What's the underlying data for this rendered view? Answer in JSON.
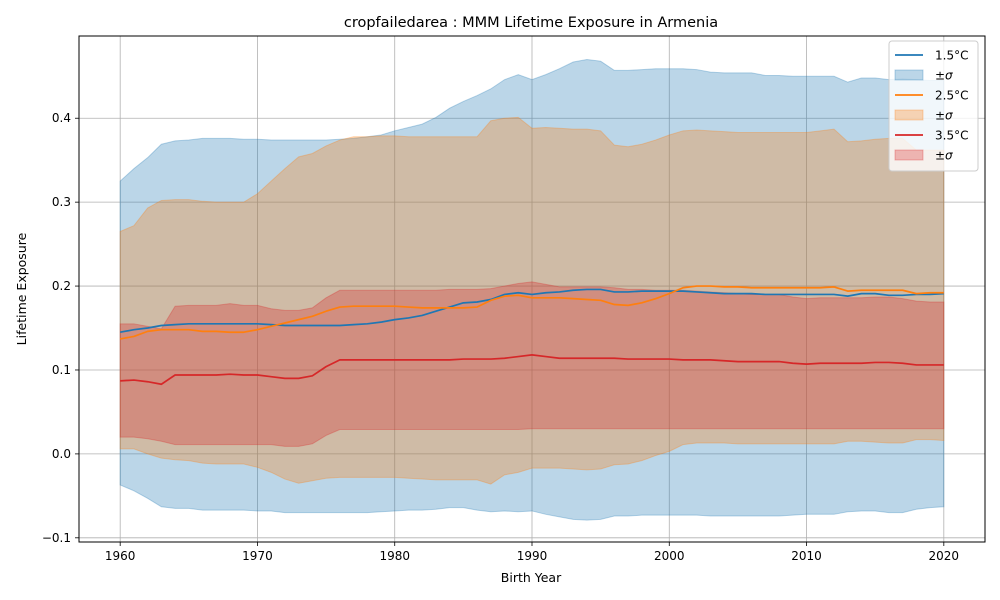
{
  "chart_data": {
    "type": "area",
    "title": "cropfailedarea : MMM Lifetime Exposure in Armenia",
    "xlabel": "Birth Year",
    "ylabel": "Lifetime Exposure",
    "xlim": [
      1957,
      2023
    ],
    "ylim": [
      -0.105,
      0.498
    ],
    "x_ticks": [
      1960,
      1970,
      1980,
      1990,
      2000,
      2010,
      2020
    ],
    "x_tick_labels": [
      "1960",
      "1970",
      "1980",
      "1990",
      "2000",
      "2010",
      "2020"
    ],
    "y_ticks": [
      -0.1,
      0.0,
      0.1,
      0.2,
      0.3,
      0.4
    ],
    "y_tick_labels": [
      "−0.1",
      "0.0",
      "0.1",
      "0.2",
      "0.3",
      "0.4"
    ],
    "grid": true,
    "legend_position": "top-right",
    "x": [
      1960,
      1961,
      1962,
      1963,
      1964,
      1965,
      1966,
      1967,
      1968,
      1969,
      1970,
      1971,
      1972,
      1973,
      1974,
      1975,
      1976,
      1977,
      1978,
      1979,
      1980,
      1981,
      1982,
      1983,
      1984,
      1985,
      1986,
      1987,
      1988,
      1989,
      1990,
      1991,
      1992,
      1993,
      1994,
      1995,
      1996,
      1997,
      1998,
      1999,
      2000,
      2001,
      2002,
      2003,
      2004,
      2005,
      2006,
      2007,
      2008,
      2009,
      2010,
      2011,
      2012,
      2013,
      2014,
      2015,
      2016,
      2017,
      2018,
      2019,
      2020
    ],
    "series": [
      {
        "name": "1.5°C",
        "band_label": "±σ",
        "color": "#1f77b4",
        "mean": [
          0.145,
          0.148,
          0.15,
          0.153,
          0.154,
          0.155,
          0.155,
          0.155,
          0.155,
          0.155,
          0.155,
          0.154,
          0.153,
          0.153,
          0.153,
          0.153,
          0.153,
          0.154,
          0.155,
          0.157,
          0.16,
          0.162,
          0.165,
          0.17,
          0.175,
          0.18,
          0.181,
          0.184,
          0.19,
          0.192,
          0.19,
          0.192,
          0.193,
          0.195,
          0.196,
          0.196,
          0.193,
          0.193,
          0.194,
          0.194,
          0.194,
          0.194,
          0.193,
          0.192,
          0.191,
          0.191,
          0.191,
          0.19,
          0.19,
          0.19,
          0.19,
          0.19,
          0.19,
          0.188,
          0.191,
          0.191,
          0.189,
          0.189,
          0.19,
          0.19,
          0.191
        ],
        "upper": [
          0.325,
          0.34,
          0.353,
          0.369,
          0.373,
          0.374,
          0.376,
          0.376,
          0.376,
          0.375,
          0.375,
          0.374,
          0.374,
          0.374,
          0.374,
          0.374,
          0.375,
          0.376,
          0.378,
          0.38,
          0.385,
          0.389,
          0.393,
          0.401,
          0.412,
          0.42,
          0.427,
          0.435,
          0.446,
          0.452,
          0.446,
          0.452,
          0.459,
          0.467,
          0.47,
          0.468,
          0.457,
          0.457,
          0.458,
          0.459,
          0.459,
          0.459,
          0.458,
          0.455,
          0.454,
          0.454,
          0.454,
          0.451,
          0.451,
          0.45,
          0.45,
          0.45,
          0.45,
          0.443,
          0.448,
          0.448,
          0.446,
          0.447,
          0.446,
          0.445,
          0.445
        ],
        "lower": [
          -0.037,
          -0.044,
          -0.053,
          -0.063,
          -0.065,
          -0.065,
          -0.067,
          -0.067,
          -0.067,
          -0.067,
          -0.068,
          -0.068,
          -0.07,
          -0.07,
          -0.07,
          -0.07,
          -0.07,
          -0.07,
          -0.07,
          -0.069,
          -0.068,
          -0.067,
          -0.067,
          -0.066,
          -0.064,
          -0.064,
          -0.067,
          -0.069,
          -0.068,
          -0.069,
          -0.068,
          -0.072,
          -0.075,
          -0.078,
          -0.079,
          -0.078,
          -0.074,
          -0.074,
          -0.073,
          -0.073,
          -0.073,
          -0.073,
          -0.073,
          -0.074,
          -0.074,
          -0.074,
          -0.074,
          -0.074,
          -0.074,
          -0.073,
          -0.072,
          -0.072,
          -0.072,
          -0.069,
          -0.068,
          -0.068,
          -0.07,
          -0.07,
          -0.066,
          -0.064,
          -0.063
        ]
      },
      {
        "name": "2.5°C",
        "band_label": "±σ",
        "color": "#ff7f0e",
        "mean": [
          0.137,
          0.14,
          0.146,
          0.148,
          0.148,
          0.148,
          0.146,
          0.146,
          0.145,
          0.145,
          0.148,
          0.152,
          0.156,
          0.16,
          0.164,
          0.17,
          0.175,
          0.176,
          0.176,
          0.176,
          0.176,
          0.175,
          0.174,
          0.174,
          0.174,
          0.174,
          0.175,
          0.183,
          0.188,
          0.189,
          0.186,
          0.186,
          0.186,
          0.185,
          0.184,
          0.183,
          0.178,
          0.177,
          0.18,
          0.185,
          0.191,
          0.198,
          0.2,
          0.2,
          0.199,
          0.199,
          0.198,
          0.198,
          0.198,
          0.198,
          0.198,
          0.198,
          0.199,
          0.194,
          0.195,
          0.195,
          0.195,
          0.195,
          0.191,
          0.192,
          0.192
        ],
        "upper": [
          0.265,
          0.272,
          0.293,
          0.302,
          0.303,
          0.303,
          0.301,
          0.3,
          0.3,
          0.3,
          0.31,
          0.325,
          0.34,
          0.354,
          0.358,
          0.367,
          0.374,
          0.378,
          0.378,
          0.379,
          0.379,
          0.378,
          0.378,
          0.378,
          0.378,
          0.378,
          0.378,
          0.397,
          0.4,
          0.401,
          0.388,
          0.389,
          0.388,
          0.387,
          0.387,
          0.385,
          0.368,
          0.366,
          0.369,
          0.374,
          0.38,
          0.385,
          0.386,
          0.385,
          0.384,
          0.383,
          0.383,
          0.383,
          0.383,
          0.383,
          0.383,
          0.385,
          0.387,
          0.372,
          0.373,
          0.375,
          0.376,
          0.376,
          0.362,
          0.362,
          0.362
        ],
        "lower": [
          0.006,
          0.006,
          0.0,
          -0.005,
          -0.007,
          -0.008,
          -0.011,
          -0.012,
          -0.012,
          -0.012,
          -0.016,
          -0.022,
          -0.03,
          -0.035,
          -0.032,
          -0.029,
          -0.028,
          -0.028,
          -0.028,
          -0.028,
          -0.028,
          -0.029,
          -0.03,
          -0.031,
          -0.031,
          -0.031,
          -0.031,
          -0.036,
          -0.025,
          -0.022,
          -0.017,
          -0.017,
          -0.017,
          -0.018,
          -0.019,
          -0.018,
          -0.013,
          -0.012,
          -0.008,
          -0.002,
          0.003,
          0.011,
          0.013,
          0.013,
          0.013,
          0.012,
          0.012,
          0.012,
          0.012,
          0.012,
          0.012,
          0.012,
          0.012,
          0.015,
          0.015,
          0.014,
          0.013,
          0.013,
          0.017,
          0.017,
          0.016
        ]
      },
      {
        "name": "3.5°C",
        "band_label": "±σ",
        "color": "#d62728",
        "mean": [
          0.087,
          0.088,
          0.086,
          0.083,
          0.094,
          0.094,
          0.094,
          0.094,
          0.095,
          0.094,
          0.094,
          0.092,
          0.09,
          0.09,
          0.093,
          0.104,
          0.112,
          0.112,
          0.112,
          0.112,
          0.112,
          0.112,
          0.112,
          0.112,
          0.112,
          0.113,
          0.113,
          0.113,
          0.114,
          0.116,
          0.118,
          0.116,
          0.114,
          0.114,
          0.114,
          0.114,
          0.114,
          0.113,
          0.113,
          0.113,
          0.113,
          0.112,
          0.112,
          0.112,
          0.111,
          0.11,
          0.11,
          0.11,
          0.11,
          0.108,
          0.107,
          0.108,
          0.108,
          0.108,
          0.108,
          0.109,
          0.109,
          0.108,
          0.106,
          0.106,
          0.106
        ],
        "upper": [
          0.155,
          0.155,
          0.152,
          0.149,
          0.176,
          0.177,
          0.177,
          0.177,
          0.179,
          0.177,
          0.177,
          0.173,
          0.171,
          0.171,
          0.174,
          0.186,
          0.195,
          0.195,
          0.195,
          0.195,
          0.195,
          0.195,
          0.195,
          0.195,
          0.196,
          0.196,
          0.196,
          0.197,
          0.2,
          0.203,
          0.205,
          0.202,
          0.199,
          0.199,
          0.199,
          0.199,
          0.198,
          0.196,
          0.196,
          0.195,
          0.195,
          0.195,
          0.194,
          0.193,
          0.192,
          0.191,
          0.19,
          0.19,
          0.19,
          0.187,
          0.185,
          0.186,
          0.186,
          0.186,
          0.186,
          0.187,
          0.187,
          0.185,
          0.182,
          0.181,
          0.181
        ],
        "lower": [
          0.02,
          0.02,
          0.018,
          0.015,
          0.011,
          0.011,
          0.011,
          0.011,
          0.011,
          0.011,
          0.011,
          0.011,
          0.009,
          0.009,
          0.012,
          0.022,
          0.029,
          0.029,
          0.029,
          0.029,
          0.029,
          0.029,
          0.029,
          0.029,
          0.029,
          0.029,
          0.029,
          0.029,
          0.029,
          0.029,
          0.03,
          0.03,
          0.03,
          0.03,
          0.03,
          0.03,
          0.03,
          0.03,
          0.03,
          0.03,
          0.03,
          0.03,
          0.03,
          0.03,
          0.03,
          0.03,
          0.03,
          0.03,
          0.03,
          0.03,
          0.03,
          0.03,
          0.03,
          0.03,
          0.03,
          0.03,
          0.03,
          0.03,
          0.03,
          0.03,
          0.03
        ]
      }
    ]
  }
}
